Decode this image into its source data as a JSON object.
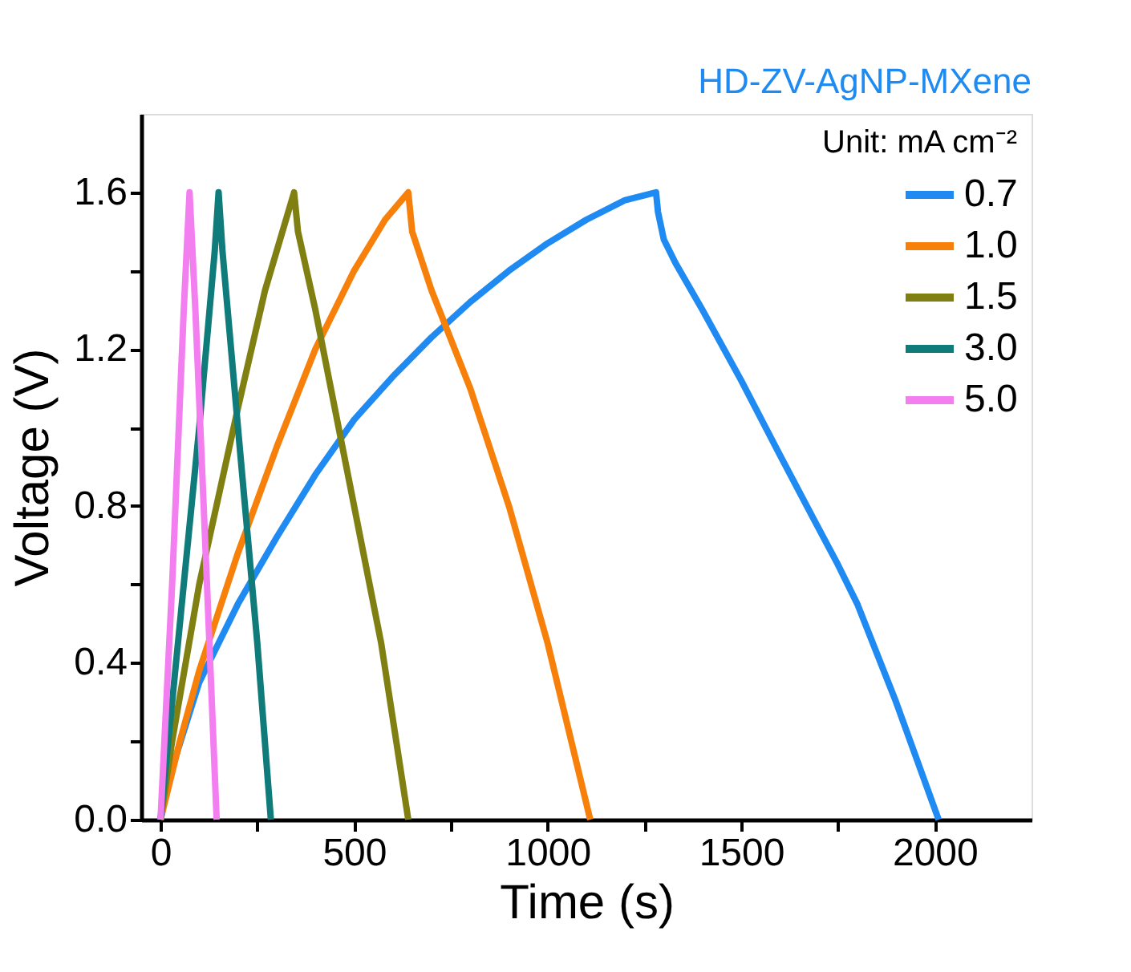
{
  "chart_data": {
    "type": "line",
    "xlabel": "Time (s)",
    "ylabel": "Voltage (V)",
    "legend_title": "Unit: mA cm⁻²",
    "annotations": [
      "HD-ZV-AgNP-MXene"
    ],
    "xlim": [
      -50,
      2250
    ],
    "ylim": [
      0,
      1.8
    ],
    "xticks": [
      0,
      {
        "value": 250,
        "label": null
      },
      500,
      {
        "value": 750,
        "label": null
      },
      1000,
      {
        "value": 1250,
        "label": null
      },
      1500,
      {
        "value": 1750,
        "label": null
      },
      2000
    ],
    "yticks": [
      {
        "value": 0,
        "label": "0.0"
      },
      {
        "value": 0.2,
        "label": null
      },
      0.4,
      {
        "value": 0.6,
        "label": null
      },
      0.8,
      {
        "value": 1.0,
        "label": null
      },
      1.2,
      {
        "value": 1.4,
        "label": null
      },
      1.6
    ],
    "grid": false,
    "legend": "top right",
    "marker": "none",
    "line_style": "solid",
    "series": [
      {
        "name": "0.7",
        "color": "#1f8bf2",
        "x": [
          0,
          20,
          100,
          200,
          300,
          400,
          500,
          600,
          700,
          800,
          900,
          1000,
          1100,
          1200,
          1280,
          1285,
          1300,
          1330,
          1400,
          1500,
          1600,
          1680,
          1750,
          1800,
          1900,
          2010
        ],
        "values": [
          0,
          0.1,
          0.35,
          0.55,
          0.72,
          0.88,
          1.02,
          1.13,
          1.23,
          1.32,
          1.4,
          1.47,
          1.53,
          1.58,
          1.6,
          1.55,
          1.48,
          1.42,
          1.3,
          1.12,
          0.93,
          0.78,
          0.65,
          0.55,
          0.3,
          0
        ]
      },
      {
        "name": "1.0",
        "color": "#f7800a",
        "x": [
          0,
          50,
          100,
          200,
          300,
          400,
          500,
          580,
          640,
          650,
          700,
          800,
          900,
          1000,
          1110
        ],
        "values": [
          0,
          0.2,
          0.38,
          0.68,
          0.95,
          1.2,
          1.4,
          1.53,
          1.6,
          1.5,
          1.35,
          1.1,
          0.8,
          0.45,
          0
        ]
      },
      {
        "name": "1.5",
        "color": "#808012",
        "x": [
          0,
          30,
          100,
          200,
          270,
          345,
          355,
          400,
          500,
          570,
          640
        ],
        "values": [
          0,
          0.2,
          0.6,
          1.05,
          1.35,
          1.6,
          1.5,
          1.3,
          0.8,
          0.45,
          0
        ]
      },
      {
        "name": "3.0",
        "color": "#0f7b7b",
        "x": [
          0,
          50,
          100,
          140,
          150,
          160,
          200,
          250,
          285
        ],
        "values": [
          0,
          0.5,
          1.0,
          1.45,
          1.6,
          1.45,
          1.0,
          0.45,
          0
        ]
      },
      {
        "name": "5.0",
        "color": "#f27ef0",
        "x": [
          0,
          30,
          60,
          75,
          90,
          120,
          145
        ],
        "values": [
          0,
          0.6,
          1.3,
          1.6,
          1.3,
          0.6,
          0
        ]
      }
    ]
  }
}
